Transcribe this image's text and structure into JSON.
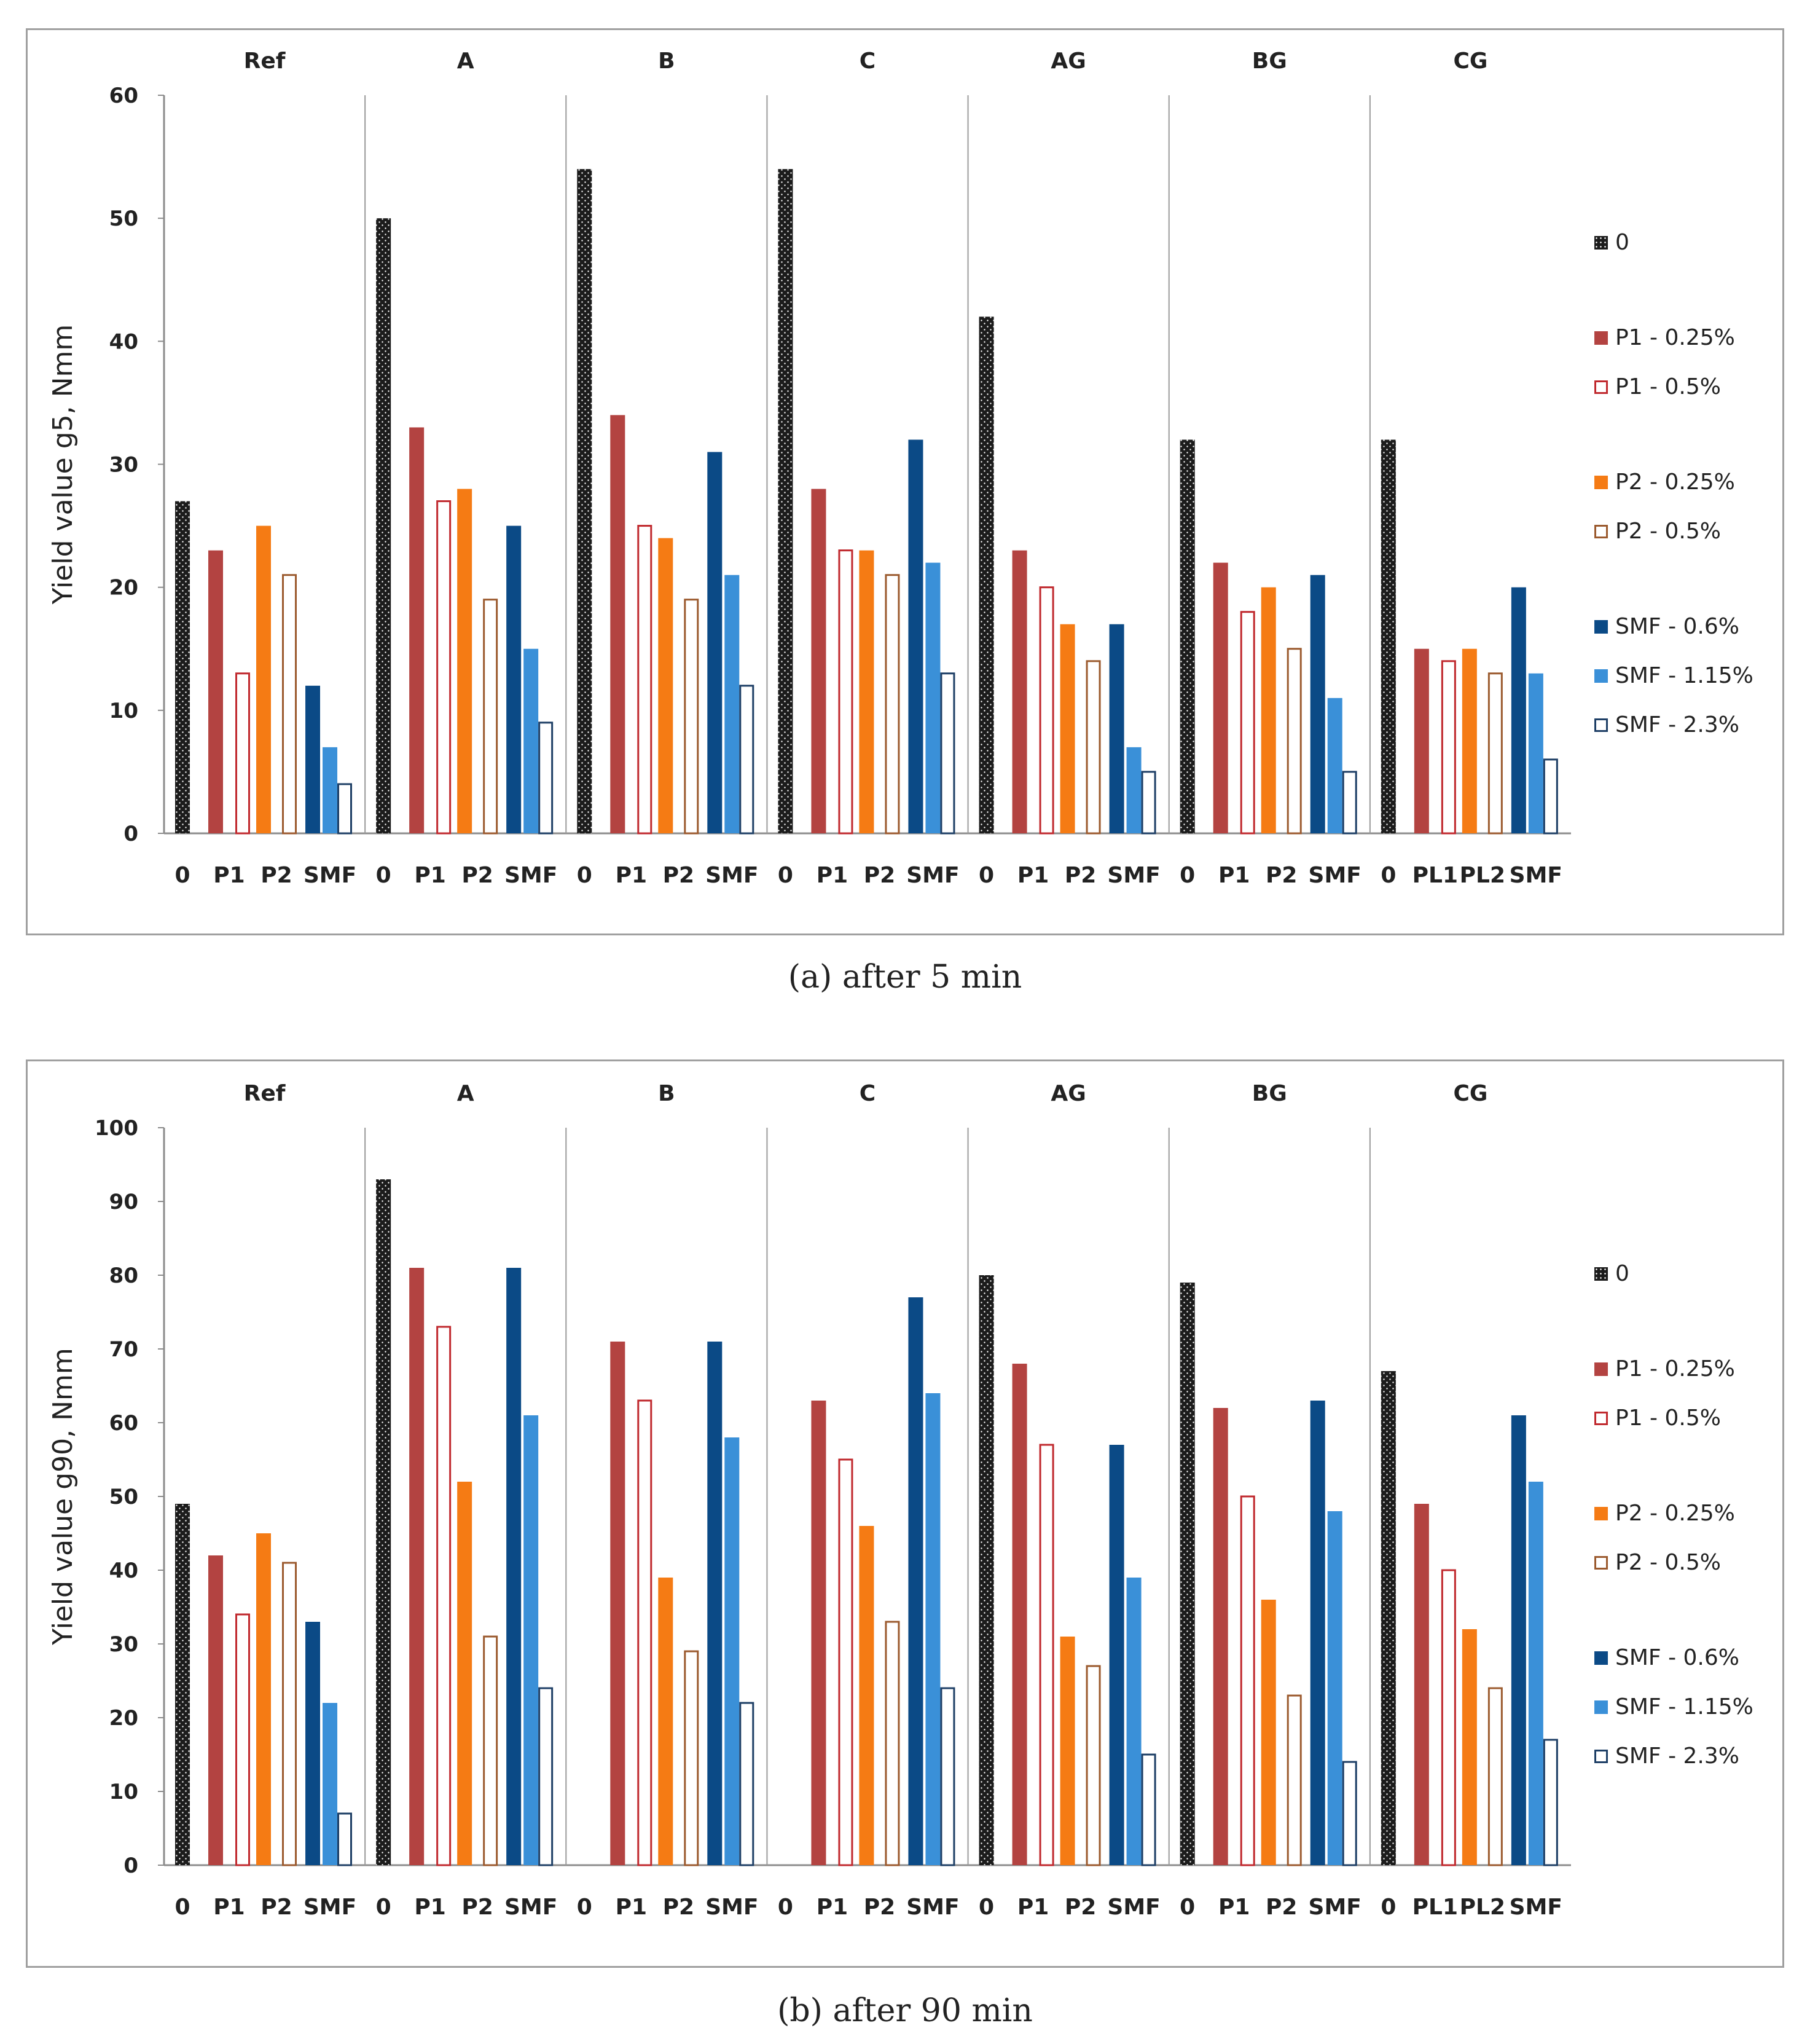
{
  "colors": {
    "0": "#1c1c1c",
    "P1 - 0.25%": "#b34341",
    "P1 - 0.5%": "#c0292e",
    "P2 - 0.25%": "#f57b14",
    "P2 - 0.5%": "#9b5a2e",
    "SMF - 0.6%": "#0b4a86",
    "SMF - 1.15%": "#3a90d8",
    "SMF - 2.3%": "#1e3f66",
    "axis": "#8c8c8c",
    "divider": "#9a9a9a"
  },
  "legend": [
    {
      "label": "0",
      "fill": "dots"
    },
    {
      "label": "P1 - 0.25%",
      "fill": "solid"
    },
    {
      "label": "P1 - 0.5%",
      "fill": "hollow"
    },
    {
      "label": "P2 - 0.25%",
      "fill": "solid"
    },
    {
      "label": "P2 - 0.5%",
      "fill": "hollow"
    },
    {
      "label": "SMF - 0.6%",
      "fill": "solid"
    },
    {
      "label": "SMF - 1.15%",
      "fill": "solid"
    },
    {
      "label": "SMF - 2.3%",
      "fill": "hollow"
    }
  ],
  "chart_data": [
    {
      "type": "bar",
      "caption": "(a) after 5 min",
      "ylabel": "Yield value g5, Nmm",
      "ylim": [
        0,
        60
      ],
      "yticks": [
        0,
        10,
        20,
        30,
        40,
        50,
        60
      ],
      "grid": false,
      "legend_position": "right",
      "groups": [
        "Ref",
        "A",
        "B",
        "C",
        "AG",
        "BG",
        "CG"
      ],
      "tick_labels": [
        [
          "0",
          "P1",
          "P2",
          "SMF"
        ],
        [
          "0",
          "P1",
          "P2",
          "SMF"
        ],
        [
          "0",
          "P1",
          "P2",
          "SMF"
        ],
        [
          "0",
          "P1",
          "P2",
          "SMF"
        ],
        [
          "0",
          "P1",
          "P2",
          "SMF"
        ],
        [
          "0",
          "P1",
          "P2",
          "SMF"
        ],
        [
          "0",
          "PL1",
          "PL2",
          "SMF"
        ]
      ],
      "series": [
        {
          "name": "0",
          "values": [
            27,
            50,
            54,
            54,
            42,
            32,
            32
          ]
        },
        {
          "name": "P1 - 0.25%",
          "values": [
            23,
            33,
            34,
            28,
            23,
            22,
            15
          ]
        },
        {
          "name": "P1 - 0.5%",
          "values": [
            13,
            27,
            25,
            23,
            20,
            18,
            14
          ]
        },
        {
          "name": "P2 - 0.25%",
          "values": [
            25,
            28,
            24,
            23,
            17,
            20,
            15
          ]
        },
        {
          "name": "P2 - 0.5%",
          "values": [
            21,
            19,
            19,
            21,
            14,
            15,
            13
          ]
        },
        {
          "name": "SMF - 0.6%",
          "values": [
            12,
            25,
            31,
            32,
            17,
            21,
            20
          ]
        },
        {
          "name": "SMF - 1.15%",
          "values": [
            7,
            15,
            21,
            22,
            7,
            11,
            13
          ]
        },
        {
          "name": "SMF - 2.3%",
          "values": [
            4,
            9,
            12,
            13,
            5,
            5,
            6
          ]
        }
      ]
    },
    {
      "type": "bar",
      "caption": "(b) after 90 min",
      "ylabel": "Yield value g90, Nmm",
      "ylim": [
        0,
        100
      ],
      "yticks": [
        0,
        10,
        20,
        30,
        40,
        50,
        60,
        70,
        80,
        90,
        100
      ],
      "grid": false,
      "legend_position": "right",
      "groups": [
        "Ref",
        "A",
        "B",
        "C",
        "AG",
        "BG",
        "CG"
      ],
      "tick_labels": [
        [
          "0",
          "P1",
          "P2",
          "SMF"
        ],
        [
          "0",
          "P1",
          "P2",
          "SMF"
        ],
        [
          "0",
          "P1",
          "P2",
          "SMF"
        ],
        [
          "0",
          "P1",
          "P2",
          "SMF"
        ],
        [
          "0",
          "P1",
          "P2",
          "SMF"
        ],
        [
          "0",
          "P1",
          "P2",
          "SMF"
        ],
        [
          "0",
          "PL1",
          "PL2",
          "SMF"
        ]
      ],
      "series": [
        {
          "name": "0",
          "values": [
            49,
            93,
            null,
            null,
            80,
            79,
            67
          ]
        },
        {
          "name": "P1 - 0.25%",
          "values": [
            42,
            81,
            71,
            63,
            68,
            62,
            49
          ]
        },
        {
          "name": "P1 - 0.5%",
          "values": [
            34,
            73,
            63,
            55,
            57,
            50,
            40
          ]
        },
        {
          "name": "P2 - 0.25%",
          "values": [
            45,
            52,
            39,
            46,
            31,
            36,
            32
          ]
        },
        {
          "name": "P2 - 0.5%",
          "values": [
            41,
            31,
            29,
            33,
            27,
            23,
            24
          ]
        },
        {
          "name": "SMF - 0.6%",
          "values": [
            33,
            81,
            71,
            77,
            57,
            63,
            61
          ]
        },
        {
          "name": "SMF - 1.15%",
          "values": [
            22,
            61,
            58,
            64,
            39,
            48,
            52
          ]
        },
        {
          "name": "SMF - 2.3%",
          "values": [
            7,
            24,
            22,
            24,
            15,
            14,
            17
          ]
        }
      ]
    }
  ]
}
